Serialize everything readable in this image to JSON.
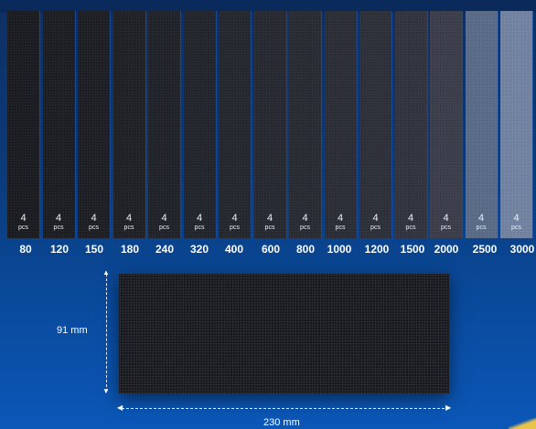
{
  "sheets": [
    {
      "grit": "80",
      "qty": "4",
      "unit": "pcs",
      "color": "#1b1d22"
    },
    {
      "grit": "120",
      "qty": "4",
      "unit": "pcs",
      "color": "#1d1f24"
    },
    {
      "grit": "150",
      "qty": "4",
      "unit": "pcs",
      "color": "#1e2026"
    },
    {
      "grit": "180",
      "qty": "4",
      "unit": "pcs",
      "color": "#202228"
    },
    {
      "grit": "240",
      "qty": "4",
      "unit": "pcs",
      "color": "#22242b"
    },
    {
      "grit": "320",
      "qty": "4",
      "unit": "pcs",
      "color": "#24262e"
    },
    {
      "grit": "400",
      "qty": "4",
      "unit": "pcs",
      "color": "#262830"
    },
    {
      "grit": "600",
      "qty": "4",
      "unit": "pcs",
      "color": "#282a33"
    },
    {
      "grit": "800",
      "qty": "4",
      "unit": "pcs",
      "color": "#2a2c35"
    },
    {
      "grit": "1000",
      "qty": "4",
      "unit": "pcs",
      "color": "#2c2e38"
    },
    {
      "grit": "1200",
      "qty": "4",
      "unit": "pcs",
      "color": "#2e303a"
    },
    {
      "grit": "1500",
      "qty": "4",
      "unit": "pcs",
      "color": "#32343f"
    },
    {
      "grit": "2000",
      "qty": "4",
      "unit": "pcs",
      "color": "#3c3f4b"
    },
    {
      "grit": "2500",
      "qty": "4",
      "unit": "pcs",
      "color": "#5b6c88"
    },
    {
      "grit": "3000",
      "qty": "4",
      "unit": "pcs",
      "color": "#7384a2"
    }
  ],
  "dimensions": {
    "height_label": "91 mm",
    "width_label": "230 mm"
  },
  "colors": {
    "background": "#0a4a9c",
    "text": "#ffffff"
  }
}
